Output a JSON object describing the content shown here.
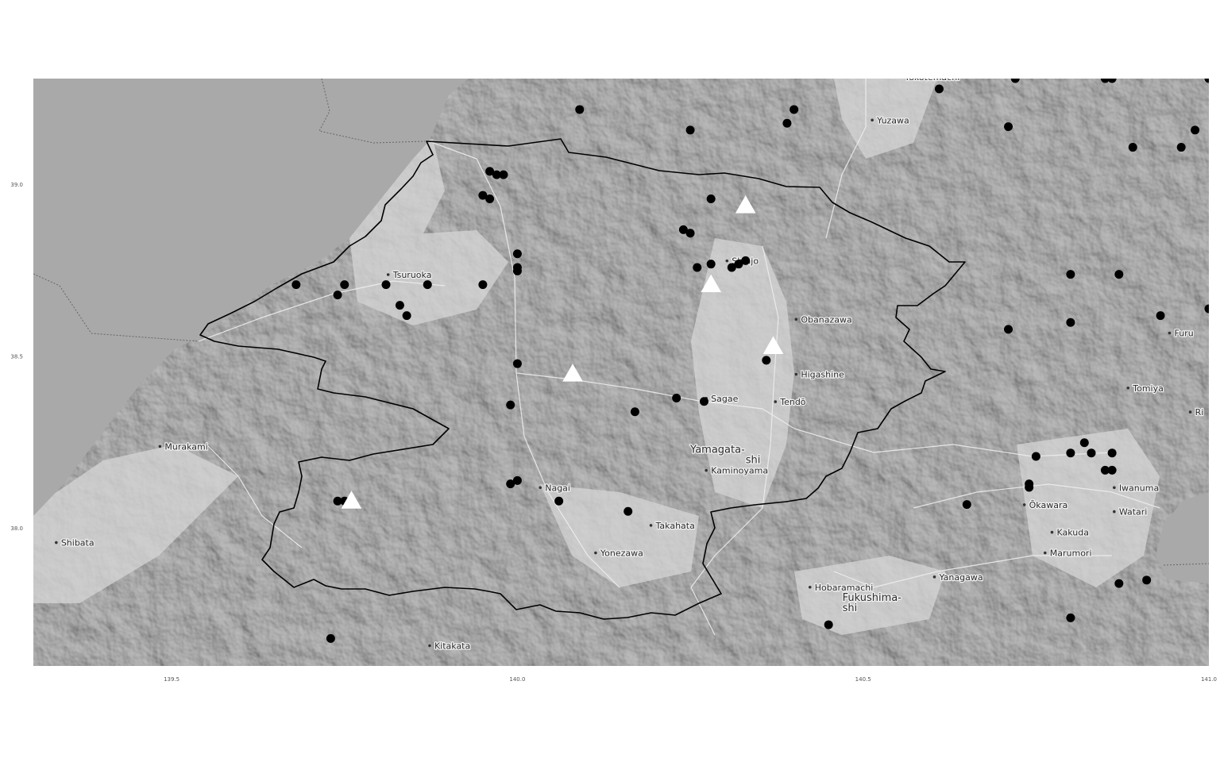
{
  "chart_data": {
    "type": "scatter",
    "xlim": [
      139.3,
      141.0
    ],
    "ylim": [
      37.6,
      39.31
    ],
    "x_ticks": [
      "139.5",
      "140.0",
      "140.5",
      "141.0"
    ],
    "y_ticks": [
      "39.0",
      "38.5",
      "38.0"
    ],
    "grid": false,
    "colors": {
      "water": "#a9a9a9",
      "land": "#8e8e8e",
      "boundary": "#000000",
      "station": "#000000",
      "volcano": "#ffffff"
    },
    "places": [
      {
        "name": "Yokotemachi",
        "lon": 140.56,
        "lat": 39.305
      },
      {
        "name": "Yuzawa",
        "lon": 140.52,
        "lat": 39.18
      },
      {
        "name": "Tsuruoka",
        "lon": 139.82,
        "lat": 38.73
      },
      {
        "name": "Shinjo",
        "lon": 140.31,
        "lat": 38.77
      },
      {
        "name": "Obanazawa",
        "lon": 140.41,
        "lat": 38.6
      },
      {
        "name": "Higashine",
        "lon": 140.41,
        "lat": 38.44
      },
      {
        "name": "Sagae",
        "lon": 140.28,
        "lat": 38.37
      },
      {
        "name": "Tendō",
        "lon": 140.38,
        "lat": 38.36
      },
      {
        "name": "Yamagata-",
        "lon": 140.25,
        "lat": 38.22,
        "big": true
      },
      {
        "name": "shi",
        "lon": 140.33,
        "lat": 38.19,
        "big": true
      },
      {
        "name": "Kaminoyama",
        "lon": 140.28,
        "lat": 38.16
      },
      {
        "name": "Murakami",
        "lon": 139.49,
        "lat": 38.23
      },
      {
        "name": "Nagai",
        "lon": 140.04,
        "lat": 38.11
      },
      {
        "name": "Takahata",
        "lon": 140.2,
        "lat": 38.0
      },
      {
        "name": "Yonezawa",
        "lon": 140.12,
        "lat": 37.92
      },
      {
        "name": "Shibata",
        "lon": 139.34,
        "lat": 37.95
      },
      {
        "name": "Kitakata",
        "lon": 139.88,
        "lat": 37.65
      },
      {
        "name": "Ōkawara",
        "lon": 140.74,
        "lat": 38.06
      },
      {
        "name": "Kakuda",
        "lon": 140.78,
        "lat": 37.98
      },
      {
        "name": "Marumori",
        "lon": 140.77,
        "lat": 37.92
      },
      {
        "name": "Yanagawa",
        "lon": 140.61,
        "lat": 37.85
      },
      {
        "name": "Hobaramachi",
        "lon": 140.43,
        "lat": 37.82
      },
      {
        "name": "Fukushima-",
        "lon": 140.47,
        "lat": 37.79,
        "big": true
      },
      {
        "name": "shi",
        "lon": 140.47,
        "lat": 37.76,
        "big": true
      },
      {
        "name": "Iwanuma",
        "lon": 140.87,
        "lat": 38.11
      },
      {
        "name": "Watari",
        "lon": 140.87,
        "lat": 38.04
      },
      {
        "name": "Tomiya",
        "lon": 140.89,
        "lat": 38.4
      },
      {
        "name": "Furu",
        "lon": 140.95,
        "lat": 38.56
      },
      {
        "name": "Ri",
        "lon": 140.98,
        "lat": 38.33
      }
    ],
    "series": [
      {
        "marker": "circle",
        "points": [
          [
            140.09,
            39.22
          ],
          [
            140.25,
            39.16
          ],
          [
            140.4,
            39.22
          ],
          [
            140.39,
            39.18
          ],
          [
            140.61,
            39.28
          ],
          [
            140.72,
            39.31
          ],
          [
            140.71,
            39.17
          ],
          [
            140.85,
            39.31
          ],
          [
            140.86,
            39.31
          ],
          [
            140.98,
            39.16
          ],
          [
            140.89,
            39.11
          ],
          [
            140.96,
            39.11
          ],
          [
            141.0,
            39.31
          ],
          [
            139.96,
            39.04
          ],
          [
            139.97,
            39.03
          ],
          [
            139.98,
            39.03
          ],
          [
            139.95,
            38.97
          ],
          [
            139.96,
            38.96
          ],
          [
            140.28,
            38.96
          ],
          [
            140.24,
            38.87
          ],
          [
            140.25,
            38.86
          ],
          [
            140.0,
            38.8
          ],
          [
            140.0,
            38.76
          ],
          [
            140.0,
            38.75
          ],
          [
            140.26,
            38.76
          ],
          [
            140.28,
            38.77
          ],
          [
            140.31,
            38.76
          ],
          [
            140.32,
            38.77
          ],
          [
            140.33,
            38.78
          ],
          [
            140.28,
            38.71
          ],
          [
            139.68,
            38.71
          ],
          [
            139.75,
            38.71
          ],
          [
            139.74,
            38.68
          ],
          [
            139.81,
            38.71
          ],
          [
            139.87,
            38.71
          ],
          [
            139.95,
            38.71
          ],
          [
            139.83,
            38.65
          ],
          [
            139.84,
            38.62
          ],
          [
            140.0,
            38.48
          ],
          [
            140.36,
            38.49
          ],
          [
            139.99,
            38.36
          ],
          [
            140.23,
            38.38
          ],
          [
            140.27,
            38.37
          ],
          [
            140.17,
            38.34
          ],
          [
            140.0,
            38.14
          ],
          [
            139.99,
            38.13
          ],
          [
            140.06,
            38.08
          ],
          [
            140.16,
            38.05
          ],
          [
            139.74,
            38.08
          ],
          [
            139.75,
            38.08
          ],
          [
            139.73,
            37.68
          ],
          [
            140.45,
            37.72
          ],
          [
            140.65,
            38.07
          ],
          [
            140.74,
            38.13
          ],
          [
            140.74,
            38.12
          ],
          [
            140.75,
            38.21
          ],
          [
            140.8,
            38.22
          ],
          [
            140.82,
            38.25
          ],
          [
            140.83,
            38.22
          ],
          [
            140.86,
            38.22
          ],
          [
            140.85,
            38.17
          ],
          [
            140.86,
            38.17
          ],
          [
            140.8,
            38.74
          ],
          [
            140.87,
            38.74
          ],
          [
            140.8,
            38.6
          ],
          [
            140.71,
            38.58
          ],
          [
            140.93,
            38.62
          ],
          [
            141.0,
            38.64
          ],
          [
            140.87,
            37.84
          ],
          [
            140.91,
            37.85
          ],
          [
            140.8,
            37.74
          ]
        ]
      },
      {
        "marker": "triangle",
        "points": [
          [
            140.33,
            38.94
          ],
          [
            140.28,
            38.71
          ],
          [
            140.37,
            38.53
          ],
          [
            140.08,
            38.45
          ],
          [
            139.76,
            38.08
          ]
        ]
      }
    ]
  }
}
